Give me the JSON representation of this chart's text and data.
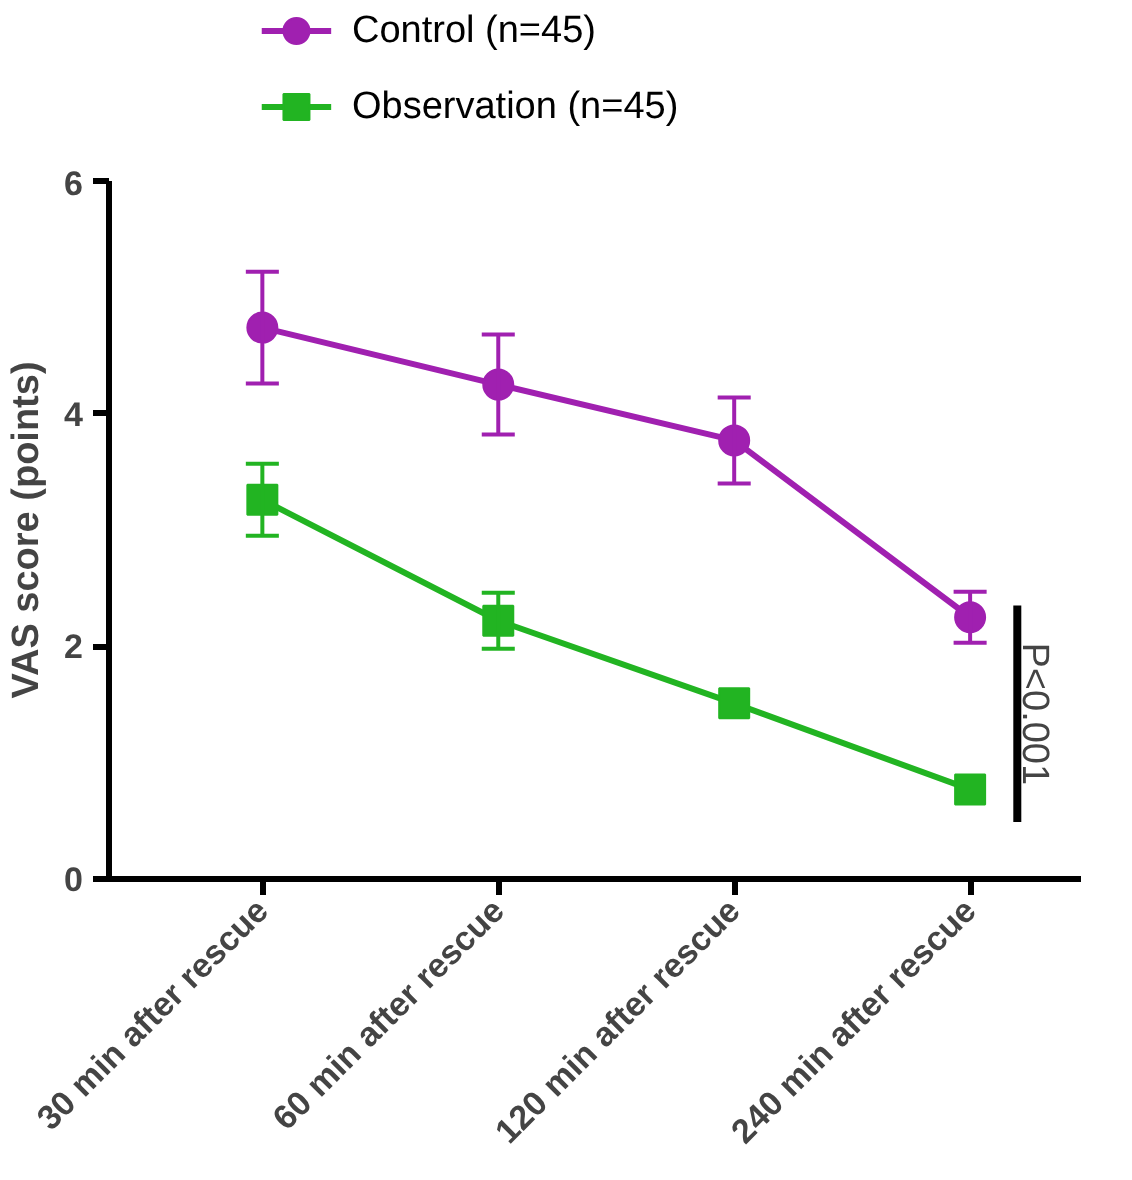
{
  "chart_data": {
    "type": "line",
    "ylabel": "VAS score (points)",
    "categories": [
      "30 min after rescue",
      "60 min after rescue",
      "120 min after rescue",
      "240 min after rescue"
    ],
    "series": [
      {
        "name": "Control (n=45)",
        "color": "#a020b0",
        "marker": "circle",
        "values": [
          4.74,
          4.25,
          3.77,
          2.25
        ],
        "errors": [
          0.48,
          0.43,
          0.37,
          0.22
        ]
      },
      {
        "name": "Observation (n=45)",
        "color": "#22b422",
        "marker": "square",
        "values": [
          3.26,
          2.22,
          1.51,
          0.77
        ],
        "errors": [
          0.31,
          0.24,
          null,
          null
        ]
      }
    ],
    "ylim": [
      0,
      6
    ],
    "yticks": [
      0,
      2,
      4,
      6
    ],
    "grid": false,
    "legend": "top",
    "annotations": [
      "P<0.001"
    ]
  }
}
